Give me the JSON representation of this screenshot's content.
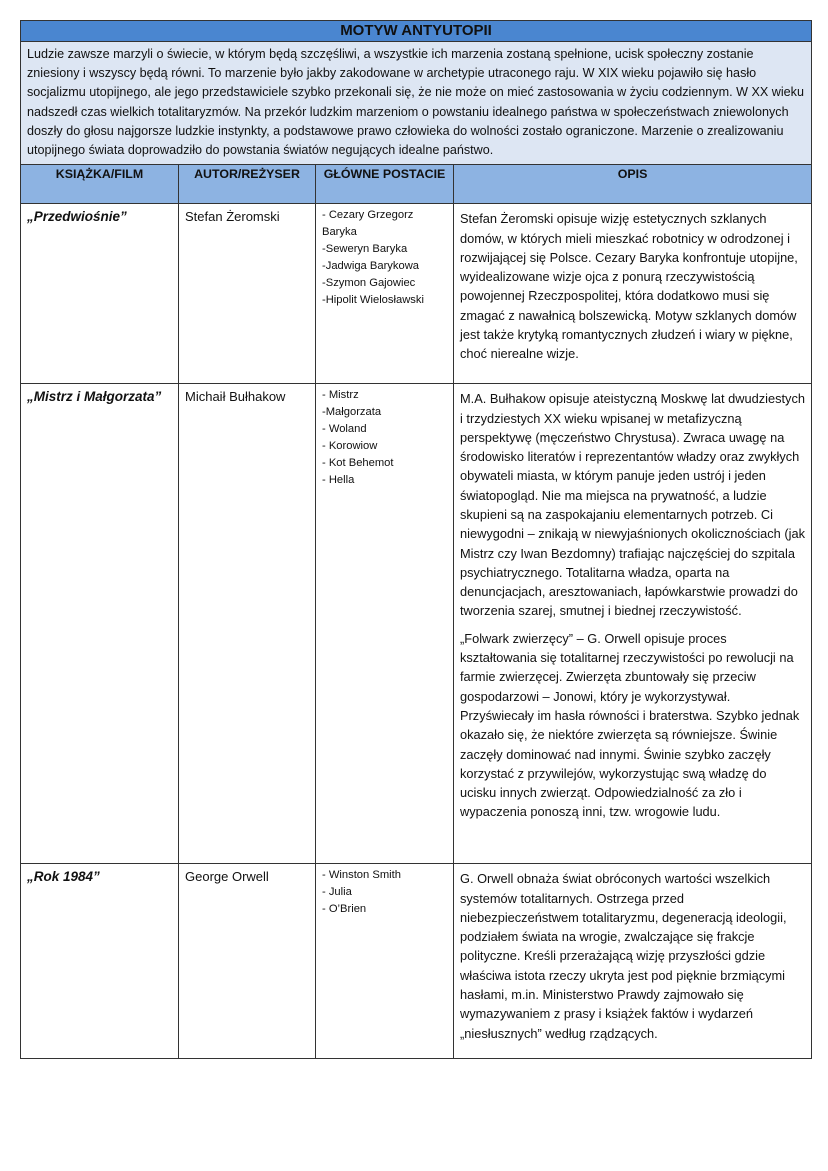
{
  "title": "MOTYW ANTYUTOPII",
  "intro": "Ludzie zawsze marzyli o świecie, w którym będą szczęśliwi, a wszystkie ich marzenia zostaną spełnione, ucisk społeczny zostanie zniesiony i wszyscy będą równi. To marzenie było jakby zakodowane w archetypie utraconego raju.  W XIX wieku pojawiło się hasło socjalizmu utopijnego, ale jego przedstawiciele szybko przekonali się, że nie może on mieć zastosowania w życiu codziennym. W XX wieku nadszedł czas wielkich totalitaryzmów. Na przekór ludzkim marzeniom o powstaniu idealnego państwa w społeczeństwach zniewolonych doszły do głosu najgorsze ludzkie instynkty, a podstawowe prawo człowieka do wolności zostało ograniczone. Marzenie o zrealizowaniu utopijnego świata doprowadziło do powstania światów negujących idealne państwo.",
  "headers": [
    "KSIĄŻKA/FILM",
    "AUTOR/REŻYSER",
    "GŁÓWNE POSTACIE",
    "OPIS"
  ],
  "rows": [
    {
      "book": "„Przedwiośnie”",
      "author": "Stefan Żeromski",
      "characters": [
        "- Cezary Grzegorz Baryka",
        "-Seweryn Baryka",
        "-Jadwiga Barykowa",
        "-Szymon Gajowiec",
        "-Hipolit Wielosławski"
      ],
      "description": [
        "Stefan Żeromski opisuje wizję estetycznych szklanych domów, w których mieli mieszkać robotnicy w odrodzonej i rozwijającej się Polsce. Cezary Baryka konfrontuje utopijne, wyidealizowane wizje ojca z ponurą rzeczywistością powojennej Rzeczpospolitej, która dodatkowo musi się zmagać z nawałnicą bolszewicką. Motyw szklanych domów jest także krytyką romantycznych złudzeń i wiary w piękne, choć nierealne wizje."
      ]
    },
    {
      "book": "„Mistrz i Małgorzata”",
      "author": "Michaił Bułhakow",
      "characters": [
        "- Mistrz",
        "-Małgorzata",
        "- Woland",
        "- Korowiow",
        "- Kot Behemot",
        "- Hella"
      ],
      "description": [
        "M.A. Bułhakow opisuje ateistyczną Moskwę lat dwudziestych i trzydziestych XX wieku wpisanej w metafizyczną perspektywę (męczeństwo Chrystusa). Zwraca uwagę na środowisko literatów i reprezentantów władzy oraz zwykłych obywateli miasta, w którym panuje jeden ustrój i jeden światopogląd. Nie ma miejsca na prywatność, a ludzie skupieni są na zaspokajaniu elementarnych potrzeb. Ci niewygodni – znikają w niewyjaśnionych okolicznościach (jak Mistrz czy Iwan Bezdomny) trafiając najczęściej do szpitala psychiatrycznego. Totalitarna władza, oparta na denuncjacjach, aresztowaniach, łapówkarstwie prowadzi do tworzenia szarej, smutnej i biednej rzeczywistość.",
        "„Folwark zwierzęcy” – G. Orwell opisuje proces kształtowania się totalitarnej rzeczywistości po rewolucji na farmie zwierzęcej. Zwierzęta zbuntowały się przeciw gospodarzowi – Jonowi, który je wykorzystywał. Przyświecały im hasła równości i braterstwa. Szybko jednak okazało się, że niektóre zwierzęta są równiejsze. Świnie zaczęły dominować nad innymi. Świnie szybko zaczęły korzystać z przywilejów, wykorzystując swą władzę do ucisku innych zwierząt. Odpowiedzialność za zło i wypaczenia ponoszą inni, tzw. wrogowie ludu."
      ]
    },
    {
      "book": "„Rok 1984”",
      "author": "George Orwell",
      "characters": [
        "- Winston Smith",
        "- Julia",
        "- O’Brien"
      ],
      "description": [
        "G. Orwell obnaża świat obróconych wartości wszelkich systemów totalitarnych. Ostrzega przed niebezpieczeństwem totalitaryzmu, degeneracją ideologii, podziałem świata na wrogie, zwalczające się frakcje polityczne. Kreśli przerażającą wizję przyszłości gdzie właściwa istota rzeczy ukryta jest pod pięknie brzmiącymi hasłami, m.in. Ministerstwo Prawdy zajmowało się wymazywaniem z prasy i książek faktów i wydarzeń „niesłusznych” według rządzących."
      ]
    }
  ]
}
